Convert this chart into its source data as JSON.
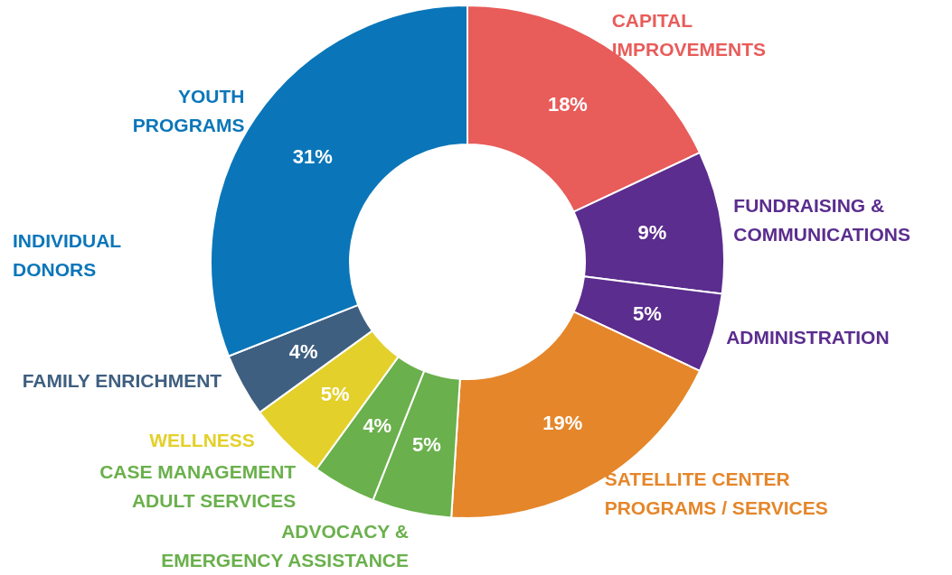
{
  "chart_data": {
    "type": "donut",
    "categories": [
      "CAPITAL\nIMPROVEMENTS",
      "FUNDRAISING &\nCOMMUNICATIONS",
      "ADMINISTRATION",
      "SATELLITE CENTER\nPROGRAMS / SERVICES",
      "ADVOCACY &\nEMERGENCY ASSISTANCE",
      "CASE MANAGEMENT\nADULT SERVICES",
      "WELLNESS",
      "FAMILY ENRICHMENT",
      "YOUTH\nPROGRAMS"
    ],
    "values": [
      18,
      9,
      5,
      19,
      5,
      4,
      5,
      4,
      31
    ],
    "value_labels": [
      "18%",
      "9%",
      "5%",
      "19%",
      "5%",
      "4%",
      "5%",
      "4%",
      "31%"
    ],
    "colors": [
      "#e85c5a",
      "#5b2d8e",
      "#5b2d8e",
      "#e5862a",
      "#6ab04c",
      "#6ab04c",
      "#e3d02a",
      "#3f5f80",
      "#0a76b9"
    ],
    "annotations": [
      "INDIVIDUAL\nDONORS"
    ],
    "legend": false
  }
}
